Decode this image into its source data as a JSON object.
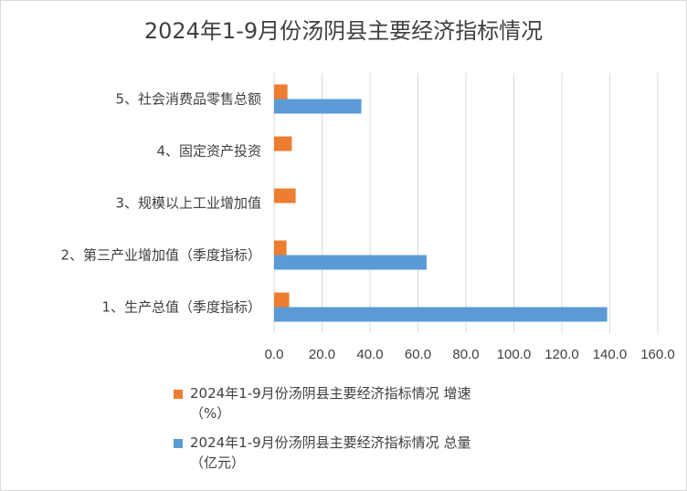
{
  "chart_data": {
    "type": "bar",
    "orientation": "horizontal",
    "title": "2024年1-9月份汤阴县主要经济指标情况",
    "categories": [
      "1、生产总值（季度指标）",
      "2、第三产业增加值（季度指标）",
      "3、规模以上工业增加值",
      "4、固定资产投资",
      "5、社会消费品零售总额"
    ],
    "series": [
      {
        "name": "2024年1-9月份汤阴县主要经济指标情况 增速（%）",
        "color": "#ed7d31",
        "values": [
          6.3,
          5.2,
          9.0,
          7.4,
          5.6
        ]
      },
      {
        "name": "2024年1-9月份汤阴县主要经济指标情况 总量（亿元）",
        "color": "#5b9bd5",
        "values": [
          138.9,
          63.6,
          null,
          null,
          36.4
        ]
      }
    ],
    "xlim": [
      0,
      160
    ],
    "xticks": [
      "0.0",
      "20.0",
      "40.0",
      "60.0",
      "80.0",
      "100.0",
      "120.0",
      "140.0",
      "160.0"
    ],
    "grid": true,
    "legend_position": "bottom"
  },
  "legend": {
    "growth_line1": "2024年1-9月份汤阴县主要经济指标情况 增速",
    "growth_line2": "（%）",
    "total_line1": "2024年1-9月份汤阴县主要经济指标情况 总量",
    "total_line2": "（亿元）"
  }
}
